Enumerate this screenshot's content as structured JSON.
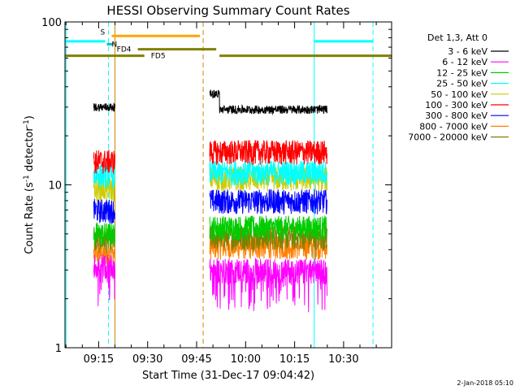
{
  "chart_data": {
    "type": "line",
    "title": "HESSI Observing Summary Count Rates",
    "xlabel": "Start Time (31-Dec-17 09:04:42)",
    "ylabel_main": "Count Rate (s",
    "ylabel_sup1": "-1",
    "ylabel_mid": " detector",
    "ylabel_sup2": "-1",
    "ylabel_end": ")",
    "yscale": "log",
    "ylim": [
      1,
      100
    ],
    "xlim": [
      "09:04:42",
      "10:44:42"
    ],
    "xtick_labels": [
      "09:15",
      "09:30",
      "09:45",
      "10:00",
      "10:15",
      "10:30"
    ],
    "xtick_minutes": [
      555,
      570,
      585,
      600,
      615,
      630
    ],
    "ytick_labels": [
      "1",
      "10",
      "100"
    ],
    "ytick_values": [
      1,
      10,
      100
    ],
    "legend_title": "Det 1,3, Att 0",
    "legend_position": "right",
    "timestamp": "2-Jan-2018 05:10",
    "observation_windows": [
      [
        "09:13:30",
        "09:20:00"
      ],
      [
        "09:49:00",
        "10:25:00"
      ]
    ],
    "series": [
      {
        "name": "3 - 6 keV",
        "color": "#000000",
        "levels": [
          30,
          29
        ]
      },
      {
        "name": "6 - 12 keV",
        "color": "#ff00ff",
        "levels": [
          3.2,
          3.0
        ]
      },
      {
        "name": "12 - 25 keV",
        "color": "#00cc00",
        "levels": [
          5.0,
          5.5
        ]
      },
      {
        "name": "25 - 50 keV",
        "color": "#00ffff",
        "levels": [
          11.5,
          12
        ]
      },
      {
        "name": "50 - 100 keV",
        "color": "#cccc00",
        "levels": [
          9.5,
          11
        ]
      },
      {
        "name": "100 - 300 keV",
        "color": "#ff0000",
        "levels": [
          14,
          16
        ]
      },
      {
        "name": "300 - 800 keV",
        "color": "#0000ff",
        "levels": [
          7,
          8
        ]
      },
      {
        "name": "800 - 7000 keV",
        "color": "#ff8000",
        "levels": [
          3.8,
          4.2
        ]
      },
      {
        "name": "7000 - 20000 keV",
        "color": "#808000",
        "levels": [
          4.6,
          4.8
        ]
      }
    ],
    "flags": [
      {
        "label": "S",
        "color": "#ffa500",
        "start": "09:19:00",
        "end": "09:46:00",
        "level": 82
      },
      {
        "label": "N",
        "color": "#00c0c0",
        "start": "09:17:30",
        "end": "09:19:30",
        "level": 73
      },
      {
        "label": "FD4",
        "color": "#808000",
        "start": "09:27:00",
        "end": "09:51:00",
        "level": 68
      },
      {
        "label": "FD5",
        "color": "#808000",
        "start": "09:04:42",
        "end": "10:44:42",
        "level": 62
      }
    ],
    "cyan_bar": {
      "segments": [
        [
          "09:04:42",
          "09:17:00"
        ],
        [
          "10:21:00",
          "10:39:00"
        ]
      ],
      "level": 76
    },
    "vertical_lines": [
      {
        "time": "09:05:00",
        "color": "#00ffff",
        "style": "solid"
      },
      {
        "time": "09:18:00",
        "color": "#00ffff",
        "style": "dashed"
      },
      {
        "time": "09:20:00",
        "color": "#cc8800",
        "style": "solid"
      },
      {
        "time": "09:47:00",
        "color": "#cc8800",
        "style": "dashed"
      },
      {
        "time": "10:21:00",
        "color": "#00ffff",
        "style": "solid"
      },
      {
        "time": "10:39:00",
        "color": "#00ffff",
        "style": "dashed"
      }
    ]
  }
}
